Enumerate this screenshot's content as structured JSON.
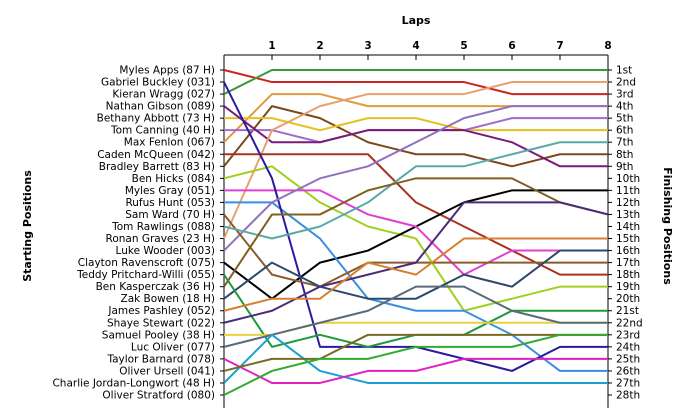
{
  "chart_data": {
    "type": "line",
    "title": "Laps",
    "xlabel": "Laps",
    "ylabel_left": "Starting Positions",
    "ylabel_right": "Finishing Positions",
    "x": [
      0,
      1,
      2,
      3,
      4,
      5,
      6,
      7,
      8
    ],
    "x_tick_labels": [
      "1",
      "2",
      "3",
      "4",
      "5",
      "6",
      "7",
      "8"
    ],
    "ylim": [
      1,
      28
    ],
    "grid": false,
    "starting_labels": [
      "Myles Apps (87 H)",
      "Gabriel Buckley (031)",
      "Kieran Wragg (027)",
      "Nathan Gibson (089)",
      "Bethany Abbott (73 H)",
      "Tom Canning (40 H)",
      "Max Fenlon (067)",
      "Caden McQueen (042)",
      "Bradley Barrett (83 H)",
      "Ben Hicks (084)",
      "Myles Gray (051)",
      "Rufus Hunt (053)",
      "Sam Ward (70 H)",
      "Tom Rawlings (088)",
      "Ronan Graves (23 H)",
      "Luke Wooder (003)",
      "Clayton Ravenscroft (075)",
      "Teddy Pritchard-Willi (055)",
      "Ben Kasperczak (36 H)",
      "Zak Bowen (18 H)",
      "James Pashley (052)",
      "Shaye Stewart (022)",
      "Samuel Pooley (38 H)",
      "Luc Oliver (077)",
      "Taylor Barnard (078)",
      "Oliver Ursell (041)",
      "Charlie Jordan-Longwort (48 H)",
      "Oliver Stratford (080)"
    ],
    "finishing_labels": [
      "1st",
      "2nd",
      "3rd",
      "4th",
      "5th",
      "6th",
      "7th",
      "8th",
      "9th",
      "10th",
      "11th",
      "12th",
      "13th",
      "14th",
      "15th",
      "16th",
      "17th",
      "18th",
      "19th",
      "20th",
      "21st",
      "22nd",
      "23rd",
      "24th",
      "25th",
      "26th",
      "27th",
      "28th"
    ],
    "series": [
      {
        "color": "#cc2222",
        "values": [
          1,
          2,
          2,
          2,
          2,
          2,
          3,
          3,
          3
        ]
      },
      {
        "color": "#3a9a3a",
        "values": [
          3,
          1,
          1,
          1,
          1,
          1,
          1,
          1,
          1
        ]
      },
      {
        "color": "#e09a40",
        "values": [
          7,
          3,
          3,
          4,
          4,
          4,
          4,
          4,
          4
        ]
      },
      {
        "color": "#7a4a1a",
        "values": [
          9,
          4,
          5,
          7,
          8,
          8,
          9,
          8,
          8
        ]
      },
      {
        "color": "#e6c020",
        "values": [
          5,
          5,
          6,
          5,
          5,
          6,
          6,
          6,
          6
        ]
      },
      {
        "color": "#a06ad0",
        "values": [
          6,
          6,
          7,
          6,
          6,
          6,
          5,
          5,
          5
        ]
      },
      {
        "color": "#7a1a7a",
        "values": [
          4,
          7,
          7,
          6,
          6,
          6,
          7,
          9,
          9
        ]
      },
      {
        "color": "#e8a070",
        "values": [
          15,
          6,
          4,
          3,
          3,
          3,
          2,
          2,
          2
        ]
      },
      {
        "color": "#aa3020",
        "values": [
          8,
          8,
          8,
          8,
          12,
          14,
          16,
          18,
          18
        ]
      },
      {
        "color": "#9fd020",
        "values": [
          10,
          9,
          12,
          14,
          15,
          21,
          20,
          19,
          19
        ]
      },
      {
        "color": "#000000",
        "values": [
          17,
          20,
          17,
          16,
          14,
          12,
          11,
          11,
          11
        ]
      },
      {
        "color": "#e040d0",
        "values": [
          11,
          11,
          11,
          13,
          14,
          18,
          16,
          16,
          16
        ]
      },
      {
        "color": "#3a8fe0",
        "values": [
          12,
          12,
          15,
          20,
          21,
          21,
          23,
          26,
          26
        ]
      },
      {
        "color": "#2a1aa0",
        "values": [
          2,
          10,
          24,
          24,
          24,
          25,
          26,
          24,
          24
        ]
      },
      {
        "color": "#9070c0",
        "values": [
          16,
          12,
          10,
          9,
          7,
          5,
          4,
          4,
          4
        ]
      },
      {
        "color": "#8b5a2a",
        "values": [
          13,
          18,
          19,
          17,
          17,
          17,
          17,
          17,
          17
        ]
      },
      {
        "color": "#5aa8a8",
        "values": [
          14,
          15,
          14,
          12,
          9,
          9,
          8,
          7,
          7
        ]
      },
      {
        "color": "#806020",
        "values": [
          19,
          13,
          13,
          11,
          10,
          10,
          10,
          12,
          13
        ]
      },
      {
        "color": "#2b4a6a",
        "values": [
          20,
          17,
          19,
          20,
          20,
          18,
          19,
          16,
          16
        ]
      },
      {
        "color": "#1f9a3a",
        "values": [
          18,
          24,
          23,
          24,
          23,
          23,
          21,
          21,
          21
        ]
      },
      {
        "color": "#4b2a7a",
        "values": [
          22,
          21,
          19,
          18,
          17,
          12,
          12,
          12,
          13
        ]
      },
      {
        "color": "#d88030",
        "values": [
          21,
          20,
          20,
          17,
          18,
          15,
          15,
          15,
          15
        ]
      },
      {
        "color": "#e8d040",
        "values": [
          23,
          23,
          22,
          22,
          22,
          22,
          22,
          22,
          22
        ]
      },
      {
        "color": "#5a6a7a",
        "values": [
          24,
          23,
          22,
          21,
          19,
          19,
          21,
          22,
          22
        ]
      },
      {
        "color": "#1aa0d0",
        "values": [
          27,
          23,
          26,
          27,
          27,
          27,
          27,
          27,
          27
        ]
      },
      {
        "color": "#e020c0",
        "values": [
          25,
          27,
          27,
          26,
          26,
          25,
          25,
          25,
          25
        ]
      },
      {
        "color": "#7a6a20",
        "values": [
          26,
          25,
          25,
          23,
          23,
          23,
          23,
          23,
          23
        ]
      },
      {
        "color": "#32aa32",
        "values": [
          28,
          26,
          25,
          25,
          24,
          24,
          24,
          23,
          23
        ]
      }
    ]
  }
}
